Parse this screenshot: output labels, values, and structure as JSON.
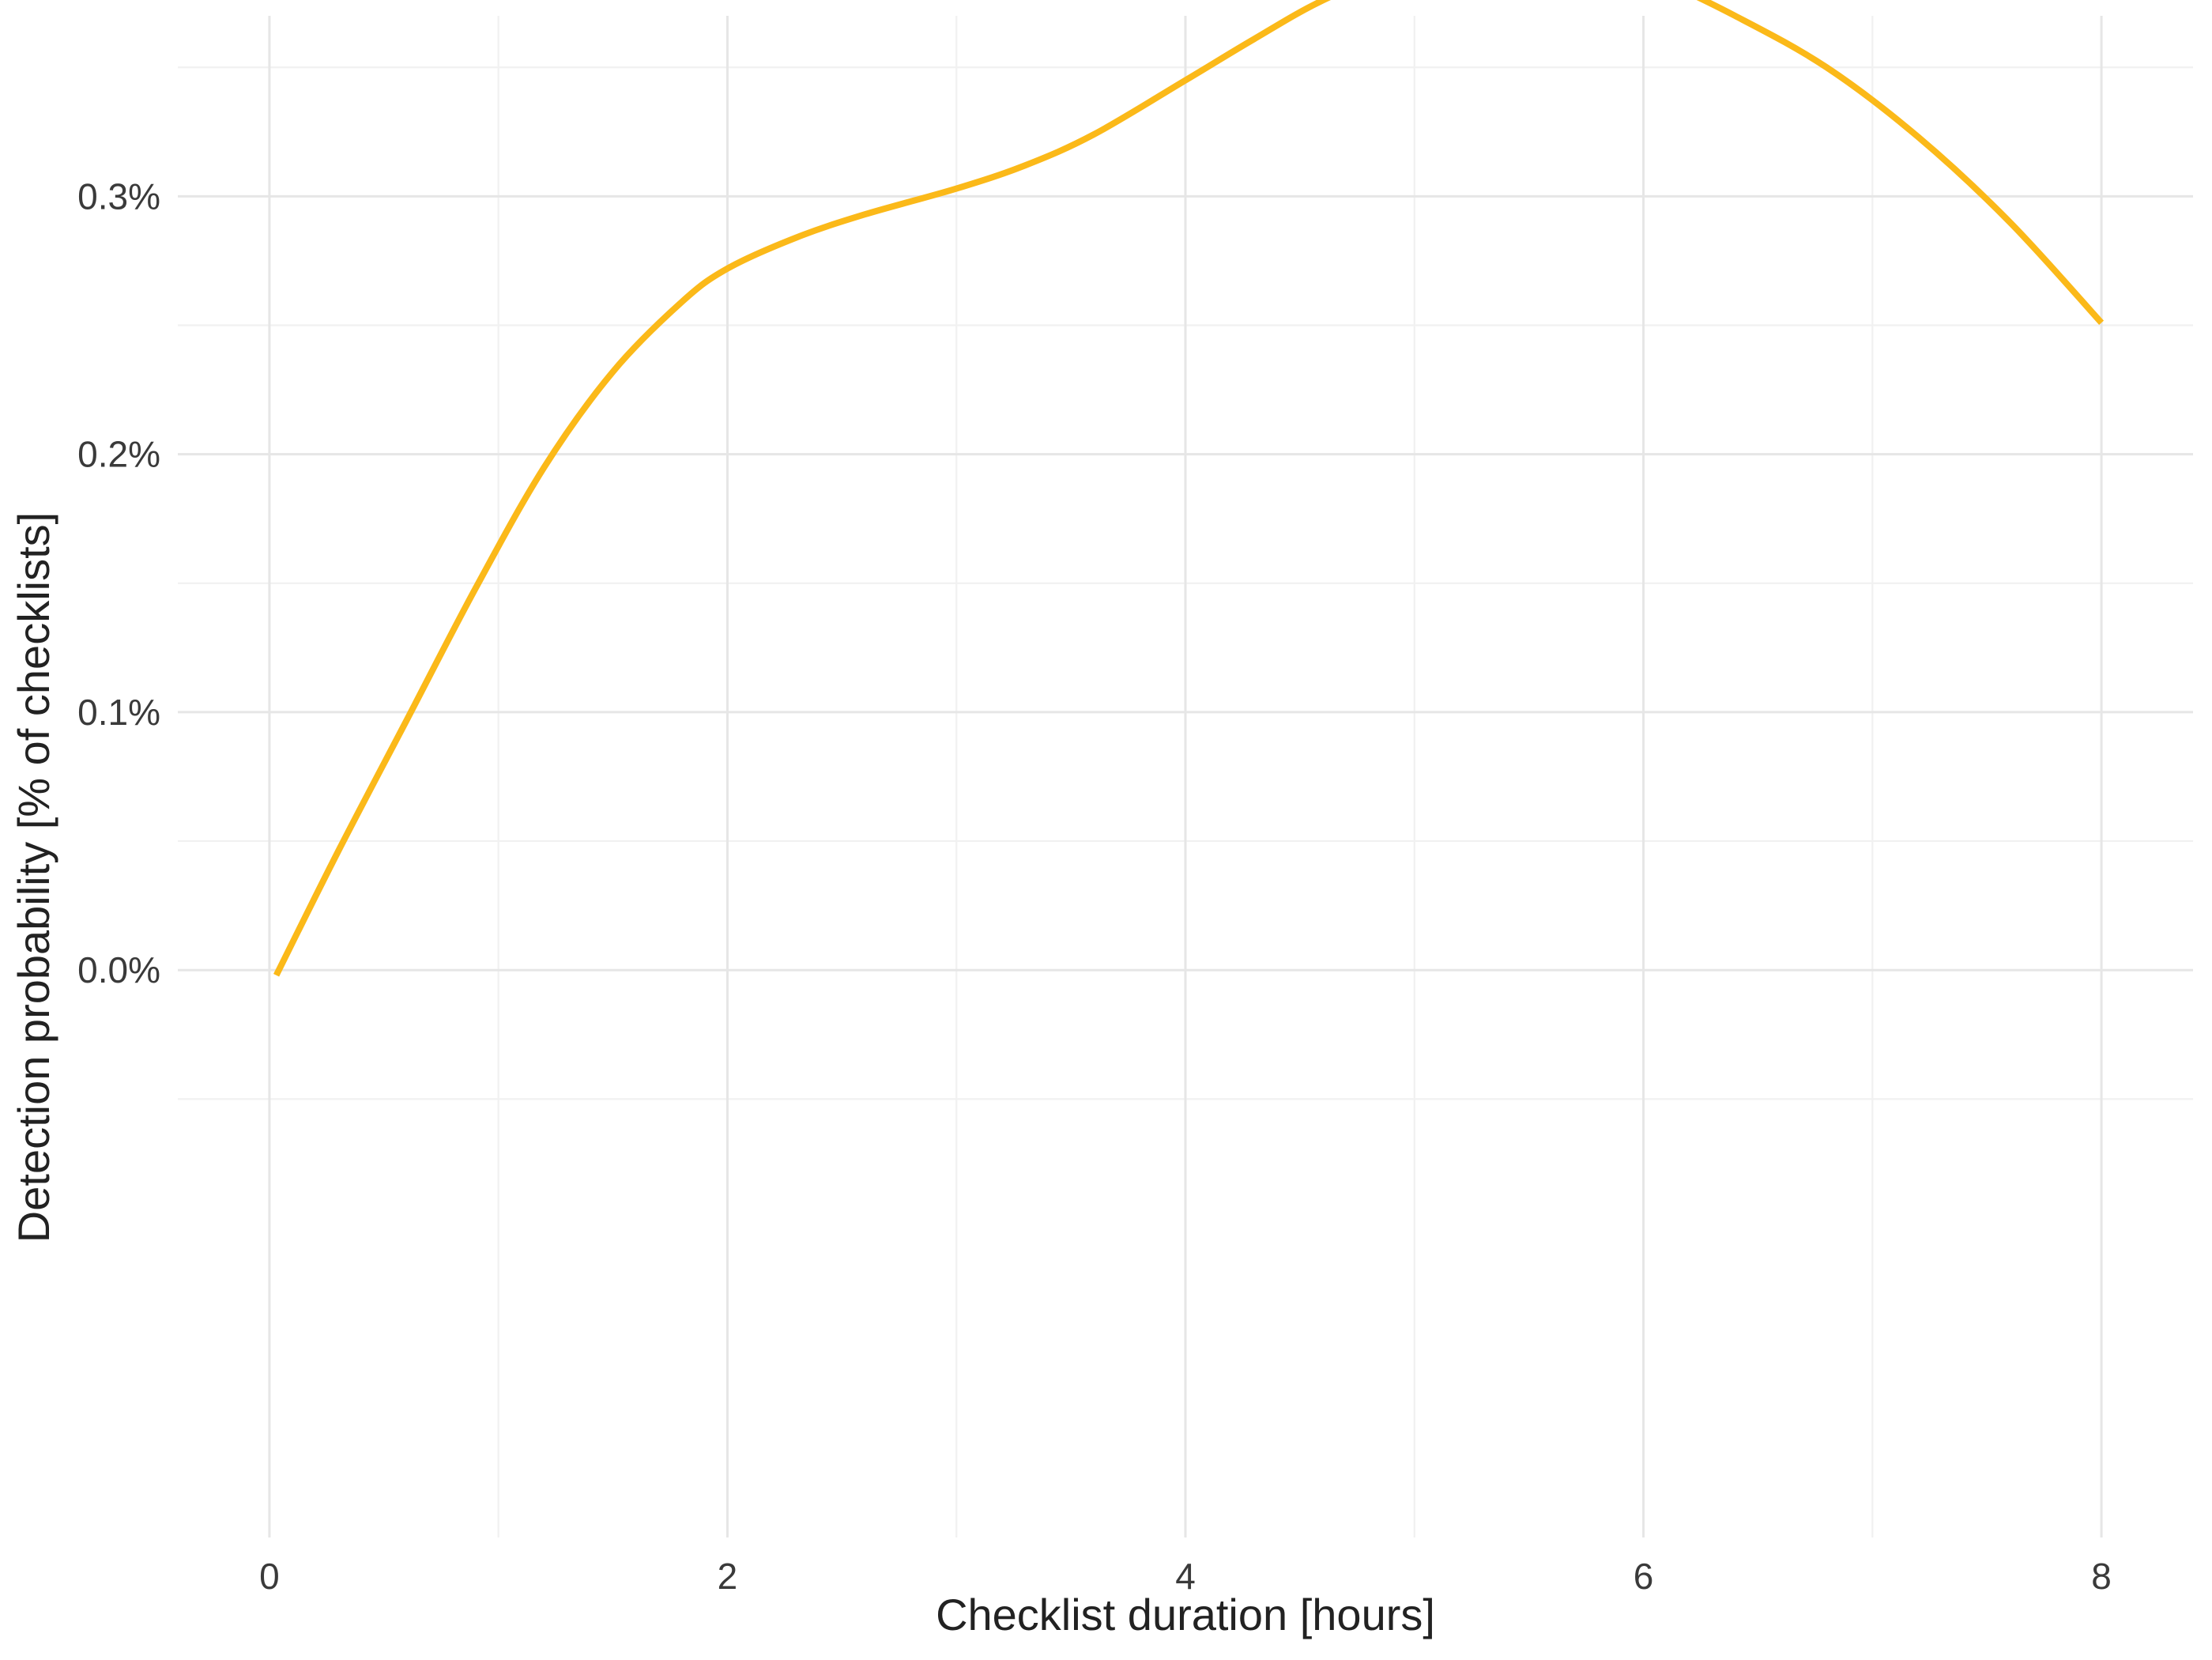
{
  "chart_data": {
    "type": "line",
    "title": "",
    "xlabel": "Checklist duration [hours]",
    "ylabel": "Detection probability [% of checklists]",
    "xlim": [
      -0.4,
      8.4
    ],
    "ylim": [
      -0.0022,
      0.0037
    ],
    "x_ticks": [
      0,
      2,
      4,
      6,
      8
    ],
    "x_tick_labels": [
      "0",
      "2",
      "4",
      "6",
      "8"
    ],
    "y_ticks": [
      0.0,
      0.001,
      0.002,
      0.003
    ],
    "y_tick_labels": [
      "0.0%",
      "0.1%",
      "0.2%",
      "0.3%"
    ],
    "grid": true,
    "legend": "none",
    "series": [
      {
        "color": "#FBB919",
        "x": [
          0.03,
          0.3,
          0.6,
          0.9,
          1.2,
          1.5,
          1.8,
          2.0,
          2.3,
          2.6,
          3.0,
          3.3,
          3.6,
          4.0,
          4.3,
          4.6,
          5.0,
          5.2,
          5.4,
          5.6,
          5.8,
          6.0,
          6.4,
          6.8,
          7.2,
          7.6,
          8.0
        ],
        "y": [
          -2e-05,
          0.00046,
          0.00097,
          0.00148,
          0.00195,
          0.00232,
          0.00259,
          0.00272,
          0.00284,
          0.00293,
          0.00303,
          0.00312,
          0.00324,
          0.00345,
          0.00361,
          0.00376,
          0.00391,
          0.00396,
          0.00398,
          0.00397,
          0.00393,
          0.00387,
          0.0037,
          0.0035,
          0.00323,
          0.0029,
          0.00251
        ]
      }
    ]
  }
}
